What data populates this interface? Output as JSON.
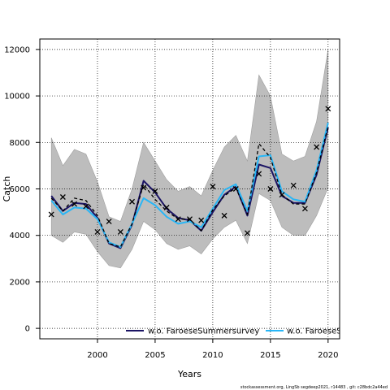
{
  "chart_data": {
    "type": "line",
    "title": "",
    "xlabel": "Years",
    "ylabel": "Catch",
    "xlim": [
      1995,
      2021
    ],
    "ylim": [
      -450,
      12450
    ],
    "x_ticks": [
      2000,
      2005,
      2010,
      2015,
      2020
    ],
    "y_ticks": [
      0,
      2000,
      4000,
      6000,
      8000,
      10000,
      12000
    ],
    "grid": true,
    "legend_position": "bottom-right",
    "years": [
      1996,
      1997,
      1998,
      1999,
      2000,
      2001,
      2002,
      2003,
      2004,
      2005,
      2006,
      2007,
      2008,
      2009,
      2010,
      2011,
      2012,
      2013,
      2014,
      2015,
      2016,
      2017,
      2018,
      2019,
      2020
    ],
    "band": {
      "upper": [
        8200,
        7000,
        7700,
        7500,
        6300,
        4800,
        4600,
        6000,
        8000,
        7200,
        6400,
        5900,
        6100,
        5700,
        6800,
        7800,
        8300,
        7200,
        10900,
        10000,
        7500,
        7200,
        7400,
        8900,
        12000
      ],
      "lower": [
        4000,
        3700,
        4150,
        4050,
        3300,
        2700,
        2600,
        3400,
        4600,
        4250,
        3650,
        3400,
        3550,
        3200,
        3850,
        4350,
        4650,
        3650,
        5800,
        5500,
        4350,
        4000,
        4000,
        4850,
        6050
      ]
    },
    "observations": {
      "marker": "x",
      "values": [
        4900,
        5650,
        5350,
        5250,
        4150,
        4600,
        4150,
        5450,
        6050,
        5900,
        5200,
        4700,
        4700,
        4650,
        6100,
        4850,
        6000,
        4100,
        6650,
        6000,
        5750,
        6150,
        5150,
        7800,
        9450
      ]
    },
    "series": [
      {
        "name": "w.o. FaroeseSummersurvey",
        "color": "#1b1464",
        "values": [
          5700,
          5050,
          5400,
          5350,
          4750,
          3650,
          3450,
          4450,
          6350,
          5850,
          5150,
          4750,
          4650,
          4200,
          5000,
          5750,
          6100,
          4850,
          7050,
          6900,
          5700,
          5400,
          5400,
          6600,
          8650
        ]
      },
      {
        "name": "w.o. FaroeseS",
        "color": "#29b6f6",
        "values": [
          5500,
          4900,
          5200,
          5150,
          4700,
          3700,
          3500,
          4500,
          5600,
          5300,
          4800,
          4500,
          4600,
          4350,
          5150,
          5950,
          6200,
          5050,
          7400,
          7450,
          5900,
          5550,
          5450,
          6800,
          8850
        ]
      },
      {
        "name": "",
        "color": "#000000",
        "dashed": true,
        "values": [
          5600,
          5050,
          5600,
          5500,
          4850,
          3650,
          3500,
          4500,
          6200,
          5550,
          5050,
          4700,
          4700,
          4200,
          5100,
          5700,
          6050,
          4900,
          7950,
          7350,
          5750,
          5350,
          5350,
          6700,
          8700
        ]
      }
    ]
  },
  "footer": {
    "text": "stockassessment.org,  LingSb  segdeep2021,  r14483 ,  git:  c28bdc2a44ed"
  }
}
